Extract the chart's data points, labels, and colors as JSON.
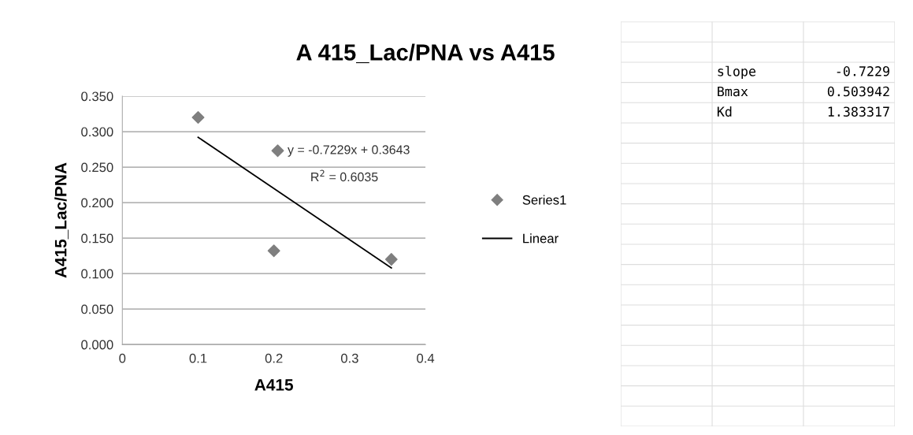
{
  "chart_data": [
    {
      "type": "scatter",
      "title": "A 415_Lac/PNA vs A415",
      "xlabel": "A415",
      "ylabel": "A415_Lac/PNA",
      "xlim": [
        0,
        0.4
      ],
      "xticks": [
        0,
        0.1,
        0.2,
        0.3,
        0.4
      ],
      "ylim": [
        0,
        0.35
      ],
      "yticks": [
        {
          "value": 0,
          "label": "0.000"
        },
        {
          "value": 0.05,
          "label": "0.050"
        },
        {
          "value": 0.1,
          "label": "0.100"
        },
        {
          "value": 0.15,
          "label": "0.150"
        },
        {
          "value": 0.2,
          "label": "0.200"
        },
        {
          "value": 0.25,
          "label": "0.250"
        },
        {
          "value": 0.3,
          "label": "0.300"
        },
        {
          "value": 0.35,
          "label": "0.350"
        }
      ],
      "grid": "y",
      "legend": "right",
      "series": [
        {
          "name": "Series1",
          "type": "scatter",
          "marker": "diamond",
          "color": "#7f7f7f",
          "x": [
            0.1,
            0.2,
            0.205,
            0.355
          ],
          "values": [
            0.32,
            0.132,
            0.273,
            0.12
          ]
        },
        {
          "name": "Linear",
          "type": "line",
          "marker": "none",
          "line_style": "solid",
          "color": "#000000",
          "x": [
            0.1,
            0.355
          ],
          "values": [
            0.292,
            0.108
          ]
        }
      ],
      "annotations": [
        "y = -0.7229x + 0.3643",
        "R$^{2}$ = 0.6035"
      ]
    },
    {
      "type": "other",
      "annotations": [
        "slope",
        "-0.7229",
        "Bmax",
        "0.503942",
        "Kd",
        "1.383317"
      ]
    }
  ]
}
